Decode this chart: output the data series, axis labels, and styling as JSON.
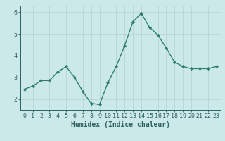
{
  "x": [
    0,
    1,
    2,
    3,
    4,
    5,
    6,
    7,
    8,
    9,
    10,
    11,
    12,
    13,
    14,
    15,
    16,
    17,
    18,
    19,
    20,
    21,
    22,
    23
  ],
  "y": [
    2.45,
    2.6,
    2.85,
    2.85,
    3.25,
    3.5,
    3.0,
    2.35,
    1.8,
    1.75,
    2.75,
    3.5,
    4.45,
    5.55,
    5.95,
    5.3,
    4.95,
    4.35,
    3.7,
    3.5,
    3.4,
    3.4,
    3.4,
    3.5
  ],
  "line_color": "#2e7d6e",
  "marker": "D",
  "marker_size": 2.2,
  "line_width": 1.0,
  "bg_color": "#cce9e9",
  "grid_color": "#b8d4d4",
  "xlabel": "Humidex (Indice chaleur)",
  "xlim": [
    -0.5,
    23.5
  ],
  "ylim": [
    1.5,
    6.3
  ],
  "yticks": [
    2,
    3,
    4,
    5,
    6
  ],
  "tick_color": "#2e6060",
  "axis_color": "#2e6060",
  "xlabel_fontsize": 7.0,
  "tick_fontsize": 6.0
}
